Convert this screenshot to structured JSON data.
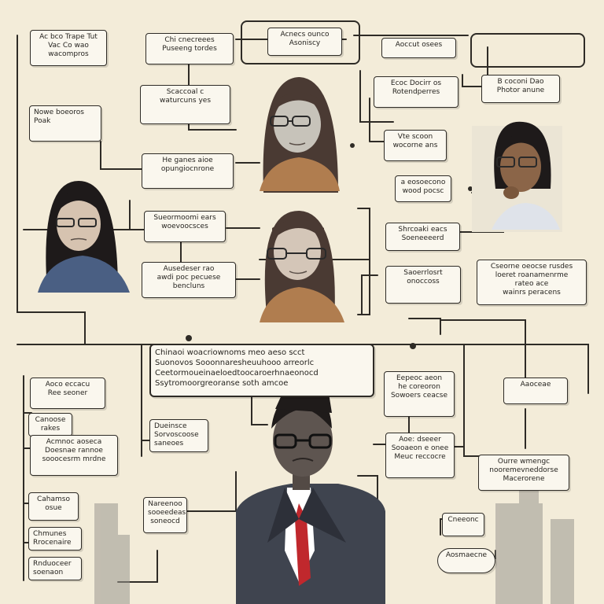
{
  "colors": {
    "background": "#f3ecd9",
    "ink": "#2e2b26",
    "box_fill": "#faf7ee",
    "tie": "#c0282d",
    "suit": "#3f444f"
  },
  "boxes": {
    "b01": "Ac bco Trape Tut\nVac Co wao\nwacompros",
    "b02": "Chi cnecreees\nPuseeng tordes",
    "b03": "Acnecs ounco\nAsoniscy",
    "b04": "Aoccut osees",
    "b05": "",
    "b06": "Scaccoal c\nwaturcuns yes",
    "b07": "Ecoc Docirr os\nRotendperres",
    "b08": "B coconi Dao\nPhotor anune",
    "b09": "Nowe boeoros\nPoak",
    "b10": "He ganes aioe\nopungiocnrone",
    "b11": "Vte scoon\nwocorne ans",
    "b12": "a eosoecono\nwood pocsc",
    "b13": "Sueormoomi ears\nwoevoocsces",
    "b14": "Shrcoaki eacs\nSoeneeeerd",
    "b15": "Cseorne oeocse rusdes\nloeret roanamenrme\nrateo ace\nwainrs peracens",
    "b16": "Ausedeser rao\nawdi poc pecuese\nbencluns",
    "b17": "Saoerrlosrt\nonoccoss",
    "b18": "Chinaoi woacriownoms meo aeso scct\nSuonovos Sooonnaresheuuhooo arreorlc\nCeetormoueinaeloedtoocaroerhnaeonocd\nSsytromoorgreoranse soth amcoe",
    "b19": "Eepeoc aeon\nhe coreoron\nSowoers ceacse",
    "b20": "Aaoceae",
    "b21": "Aoco eccacu\nRee seoner",
    "b22": "Canoose\nrakes",
    "b23": "Dueinsce\nSorvoscoose\nsaneoes",
    "b24": "Acmnoc aoseca\nDoesnae rannoe\nsooocesrm mrdne",
    "b25": "Aoe: dseeer\nSooaeon e onee\nMeuc reccocre",
    "b26": "Ourre wmengc\nnooremevneddorse\nMacerorene",
    "b27": "Cahamso\nosue",
    "b28": "Nareenoo\nsooeedeas\nsoneocd",
    "b29": "Chmunes\nRrocenaire",
    "b30": "Rnduoceer\nsoenaon",
    "b31": "Cneeonc",
    "b32": "Aosmaecne"
  }
}
